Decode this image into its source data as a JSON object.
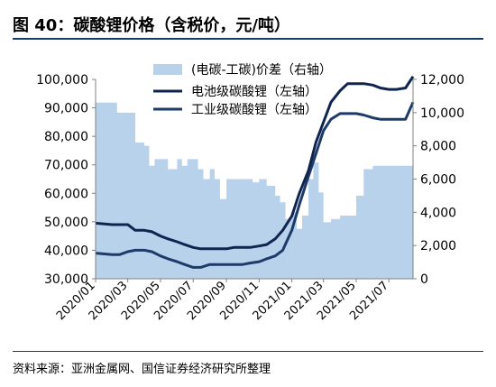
{
  "title": "图 40：碳酸锂价格（含税价，元/吨）",
  "source": "资料来源：亚洲金属网、国信证券经济研究所整理",
  "colors": {
    "battery": "#0f2550",
    "industrial": "#1e3a68",
    "spread": "#b9d2ec",
    "title_rule": "#1a3a6b"
  },
  "chart_data": {
    "type": "line",
    "x_ticks": [
      "2020/01",
      "2020/03",
      "2020/05",
      "2020/07",
      "2020/09",
      "2020/11",
      "2021/01",
      "2021/03",
      "2021/05",
      "2021/07"
    ],
    "x_range": [
      "2020-01-01",
      "2021-08-15"
    ],
    "y_left": {
      "ticks": [
        "30,000",
        "40,000",
        "50,000",
        "60,000",
        "70,000",
        "80,000",
        "90,000",
        "100,000"
      ],
      "range": [
        30000,
        100000
      ]
    },
    "y_right": {
      "ticks": [
        "0",
        "2,000",
        "4,000",
        "6,000",
        "8,000",
        "10,000",
        "12,000"
      ],
      "range": [
        0,
        12000
      ]
    },
    "legend_position": "top-center",
    "series": [
      {
        "name": "(电碳-工碳)价差（右轴）",
        "type": "area",
        "axis": "right",
        "x": [
          "2020-01-01",
          "2020-02-01",
          "2020-02-10",
          "2020-03-01",
          "2020-03-15",
          "2020-04-01",
          "2020-04-10",
          "2020-04-20",
          "2020-05-01",
          "2020-05-15",
          "2020-06-01",
          "2020-06-10",
          "2020-06-20",
          "2020-07-01",
          "2020-07-10",
          "2020-07-20",
          "2020-08-01",
          "2020-08-10",
          "2020-08-20",
          "2020-09-01",
          "2020-09-15",
          "2020-10-01",
          "2020-10-10",
          "2020-10-20",
          "2020-11-01",
          "2020-11-15",
          "2020-12-01",
          "2020-12-10",
          "2020-12-20",
          "2021-01-01",
          "2021-01-10",
          "2021-01-20",
          "2021-02-01",
          "2021-02-10",
          "2021-02-20",
          "2021-03-01",
          "2021-03-15",
          "2021-04-01",
          "2021-04-10",
          "2021-04-20",
          "2021-05-01",
          "2021-05-15",
          "2021-06-01",
          "2021-06-15",
          "2021-07-01",
          "2021-07-15",
          "2021-08-15"
        ],
        "values": [
          10600,
          10600,
          10000,
          10000,
          8200,
          8000,
          6800,
          7200,
          7200,
          6600,
          7200,
          6800,
          7200,
          7200,
          6600,
          6000,
          6600,
          6000,
          4800,
          6000,
          6000,
          6000,
          6000,
          5800,
          6000,
          5600,
          5000,
          4600,
          3600,
          4000,
          3000,
          3800,
          6000,
          7000,
          5200,
          3400,
          3600,
          3800,
          3800,
          3800,
          5000,
          6600,
          6800,
          6800,
          6800,
          6800,
          6800
        ]
      },
      {
        "name": "电池级碳酸锂（左轴）",
        "type": "line",
        "axis": "left",
        "x": [
          "2020-01-01",
          "2020-02-01",
          "2020-02-15",
          "2020-03-01",
          "2020-03-15",
          "2020-04-01",
          "2020-04-15",
          "2020-05-01",
          "2020-05-15",
          "2020-06-01",
          "2020-06-15",
          "2020-07-01",
          "2020-07-15",
          "2020-08-01",
          "2020-08-15",
          "2020-09-01",
          "2020-09-15",
          "2020-10-01",
          "2020-10-15",
          "2020-11-01",
          "2020-11-15",
          "2020-12-01",
          "2020-12-15",
          "2021-01-01",
          "2021-01-15",
          "2021-02-01",
          "2021-02-15",
          "2021-03-01",
          "2021-03-15",
          "2021-04-01",
          "2021-04-15",
          "2021-05-01",
          "2021-05-15",
          "2021-06-01",
          "2021-06-15",
          "2021-07-01",
          "2021-07-15",
          "2021-08-01",
          "2021-08-15"
        ],
        "values": [
          49500,
          49000,
          49000,
          49000,
          47000,
          47000,
          46500,
          45000,
          44000,
          43000,
          42000,
          41000,
          40500,
          40500,
          40500,
          40500,
          41000,
          41000,
          41000,
          41500,
          42000,
          44000,
          47000,
          52000,
          60000,
          68000,
          78000,
          85000,
          92000,
          96000,
          98500,
          98500,
          98500,
          98000,
          97000,
          96500,
          96500,
          97000,
          101000
        ]
      },
      {
        "name": "工业级碳酸锂（左轴）",
        "type": "line",
        "axis": "left",
        "x": [
          "2020-01-01",
          "2020-02-01",
          "2020-02-15",
          "2020-03-01",
          "2020-03-15",
          "2020-04-01",
          "2020-04-15",
          "2020-05-01",
          "2020-05-15",
          "2020-06-01",
          "2020-06-15",
          "2020-07-01",
          "2020-07-15",
          "2020-08-01",
          "2020-08-15",
          "2020-09-01",
          "2020-09-15",
          "2020-10-01",
          "2020-10-15",
          "2020-11-01",
          "2020-11-15",
          "2020-12-01",
          "2020-12-15",
          "2021-01-01",
          "2021-01-15",
          "2021-02-01",
          "2021-02-15",
          "2021-03-01",
          "2021-03-15",
          "2021-04-01",
          "2021-04-15",
          "2021-05-01",
          "2021-05-15",
          "2021-06-01",
          "2021-06-15",
          "2021-07-01",
          "2021-07-15",
          "2021-08-01",
          "2021-08-15"
        ],
        "values": [
          39000,
          38500,
          38500,
          39500,
          40000,
          40000,
          39500,
          38000,
          37000,
          36000,
          35000,
          34000,
          34000,
          35000,
          35000,
          35000,
          35000,
          35000,
          35500,
          36000,
          37000,
          38000,
          40000,
          47000,
          56000,
          66000,
          74000,
          82000,
          86000,
          88000,
          88000,
          88000,
          87500,
          86500,
          86000,
          86000,
          86000,
          86000,
          92000
        ]
      }
    ]
  }
}
